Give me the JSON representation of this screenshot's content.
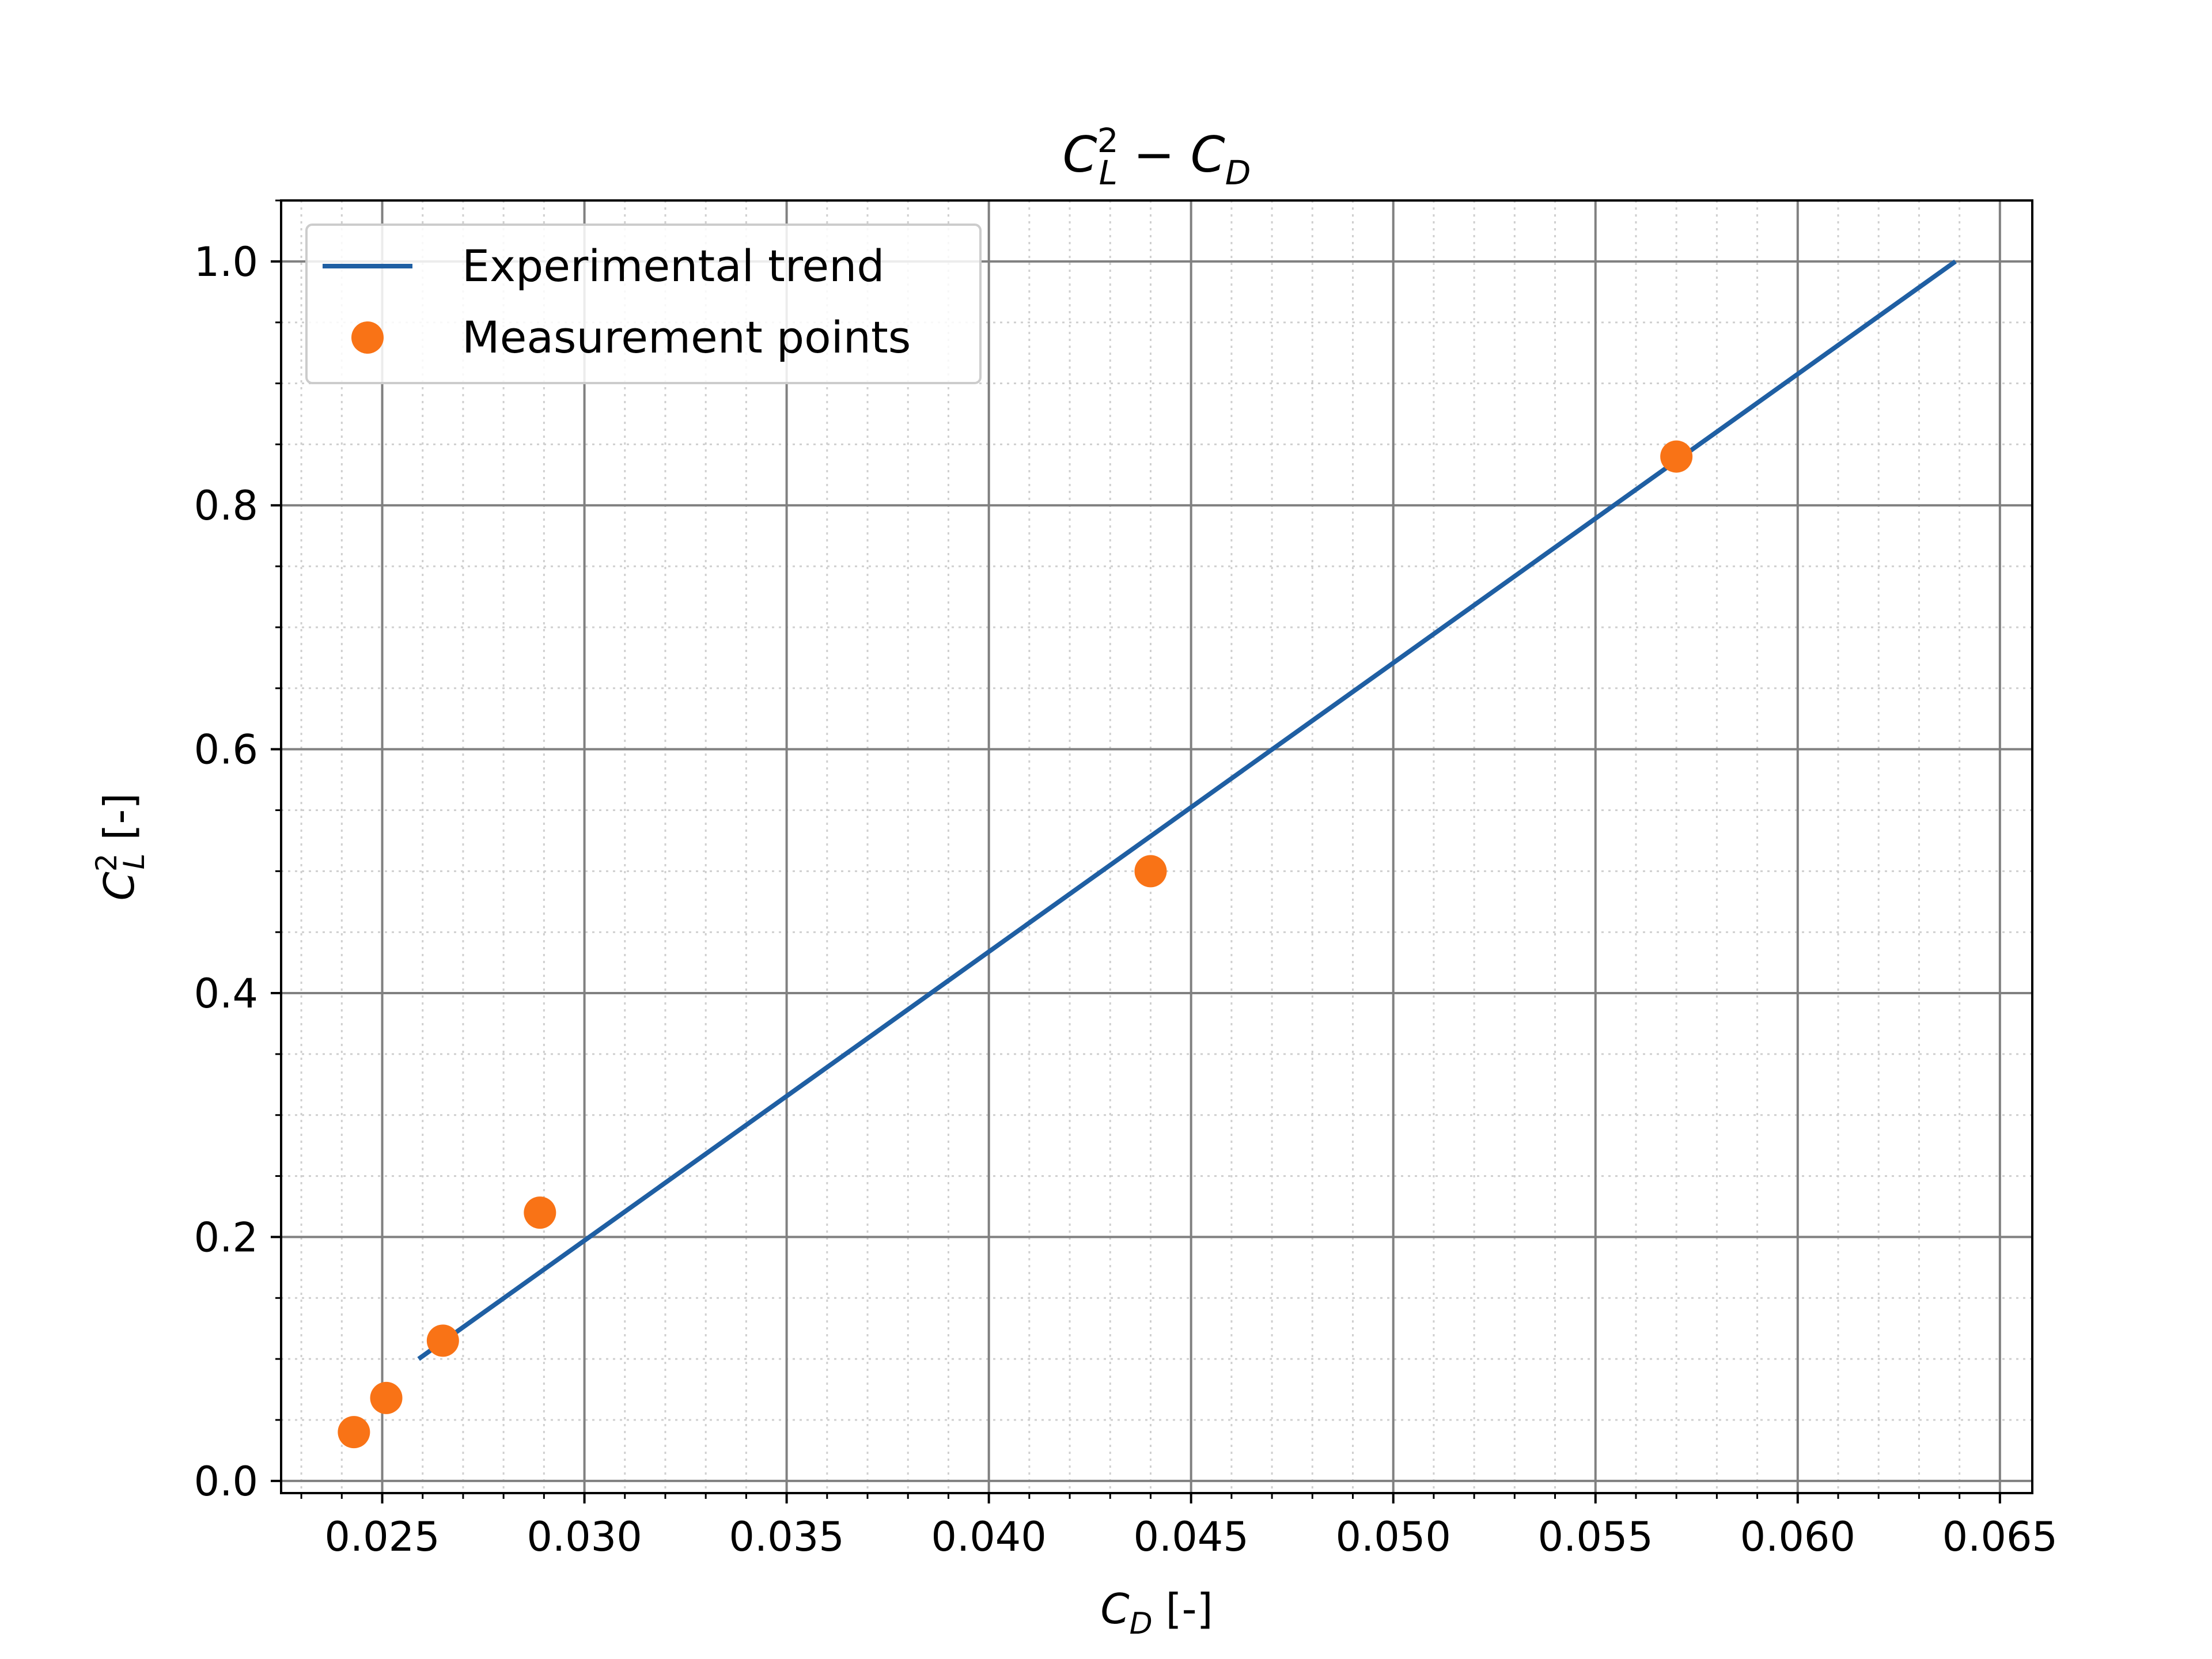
{
  "chart_data": {
    "type": "scatter",
    "title": {
      "base": "C",
      "sup": "2",
      "sub": "L",
      "rest_base": " − C",
      "rest_sub": "D"
    },
    "xlabel": {
      "base": "C",
      "sub": "D",
      "unit": " [-]"
    },
    "ylabel": {
      "base": "C",
      "sup": "2",
      "sub": "L",
      "unit": " [-]"
    },
    "xlim": [
      0.0225,
      0.0658
    ],
    "ylim": [
      -0.01,
      1.05
    ],
    "x_ticks": [
      0.025,
      0.03,
      0.035,
      0.04,
      0.045,
      0.05,
      0.055,
      0.06,
      0.065
    ],
    "x_tick_labels": [
      "0.025",
      "0.030",
      "0.035",
      "0.040",
      "0.045",
      "0.050",
      "0.055",
      "0.060",
      "0.065"
    ],
    "y_ticks": [
      0.0,
      0.2,
      0.4,
      0.6,
      0.8,
      1.0
    ],
    "y_tick_labels": [
      "0.0",
      "0.2",
      "0.4",
      "0.6",
      "0.8",
      "1.0"
    ],
    "x_minor_step": 0.001,
    "y_minor_step": 0.05,
    "grid": {
      "major": true,
      "minor": true
    },
    "legend_position": "top-left",
    "series": [
      {
        "name": "Experimental trend",
        "kind": "line",
        "color": "#1f5fa3",
        "points": [
          [
            0.0259,
            0.1
          ],
          [
            0.0639,
            1.0
          ]
        ]
      },
      {
        "name": "Measurement points",
        "kind": "scatter",
        "color": "#f97316",
        "points": [
          [
            0.0243,
            0.04
          ],
          [
            0.0251,
            0.068
          ],
          [
            0.0265,
            0.115
          ],
          [
            0.0289,
            0.22
          ],
          [
            0.044,
            0.5
          ],
          [
            0.057,
            0.84
          ]
        ]
      }
    ]
  }
}
